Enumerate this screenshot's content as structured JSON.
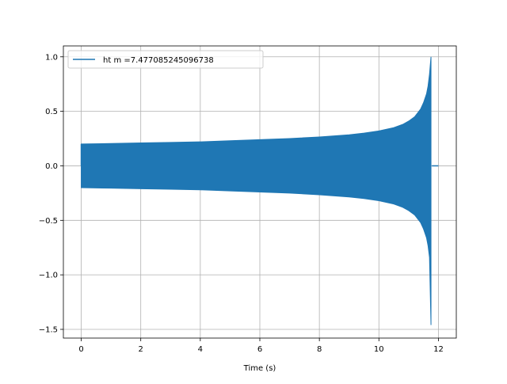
{
  "chart_data": {
    "type": "line",
    "title": "",
    "xlabel": "Time (s)",
    "ylabel": "",
    "xlim": [
      -0.6,
      12.6
    ],
    "ylim": [
      -1.58,
      1.1
    ],
    "x_ticks": [
      0,
      2,
      4,
      6,
      8,
      10,
      12
    ],
    "x_tick_labels": [
      "0",
      "2",
      "4",
      "6",
      "8",
      "10",
      "12"
    ],
    "y_ticks": [
      -1.5,
      -1.0,
      -0.5,
      0.0,
      0.5,
      1.0
    ],
    "y_tick_labels": [
      "−1.5",
      "−1.0",
      "−0.5",
      "0.0",
      "0.5",
      "1.0"
    ],
    "grid": true,
    "legend_position": "upper-left",
    "series": [
      {
        "name": "ht m =7.477085245096738",
        "color": "#1f77b4",
        "envelope": {
          "x": [
            0.0,
            1.0,
            2.0,
            3.0,
            4.0,
            5.0,
            6.0,
            7.0,
            8.0,
            9.0,
            9.5,
            10.0,
            10.5,
            10.8,
            11.0,
            11.2,
            11.4,
            11.5,
            11.6,
            11.65,
            11.7,
            11.75
          ],
          "upper": [
            0.2,
            0.205,
            0.21,
            0.215,
            0.22,
            0.23,
            0.24,
            0.25,
            0.265,
            0.285,
            0.3,
            0.32,
            0.35,
            0.38,
            0.41,
            0.45,
            0.52,
            0.58,
            0.66,
            0.73,
            0.84,
            1.0
          ],
          "lower": [
            -0.2,
            -0.205,
            -0.21,
            -0.215,
            -0.22,
            -0.23,
            -0.24,
            -0.25,
            -0.265,
            -0.285,
            -0.3,
            -0.32,
            -0.35,
            -0.38,
            -0.41,
            -0.45,
            -0.52,
            -0.58,
            -0.66,
            -0.73,
            -0.84,
            -1.46
          ]
        },
        "tail": {
          "x": [
            11.78,
            12.0
          ],
          "y": [
            0.0,
            0.0
          ]
        }
      }
    ]
  }
}
